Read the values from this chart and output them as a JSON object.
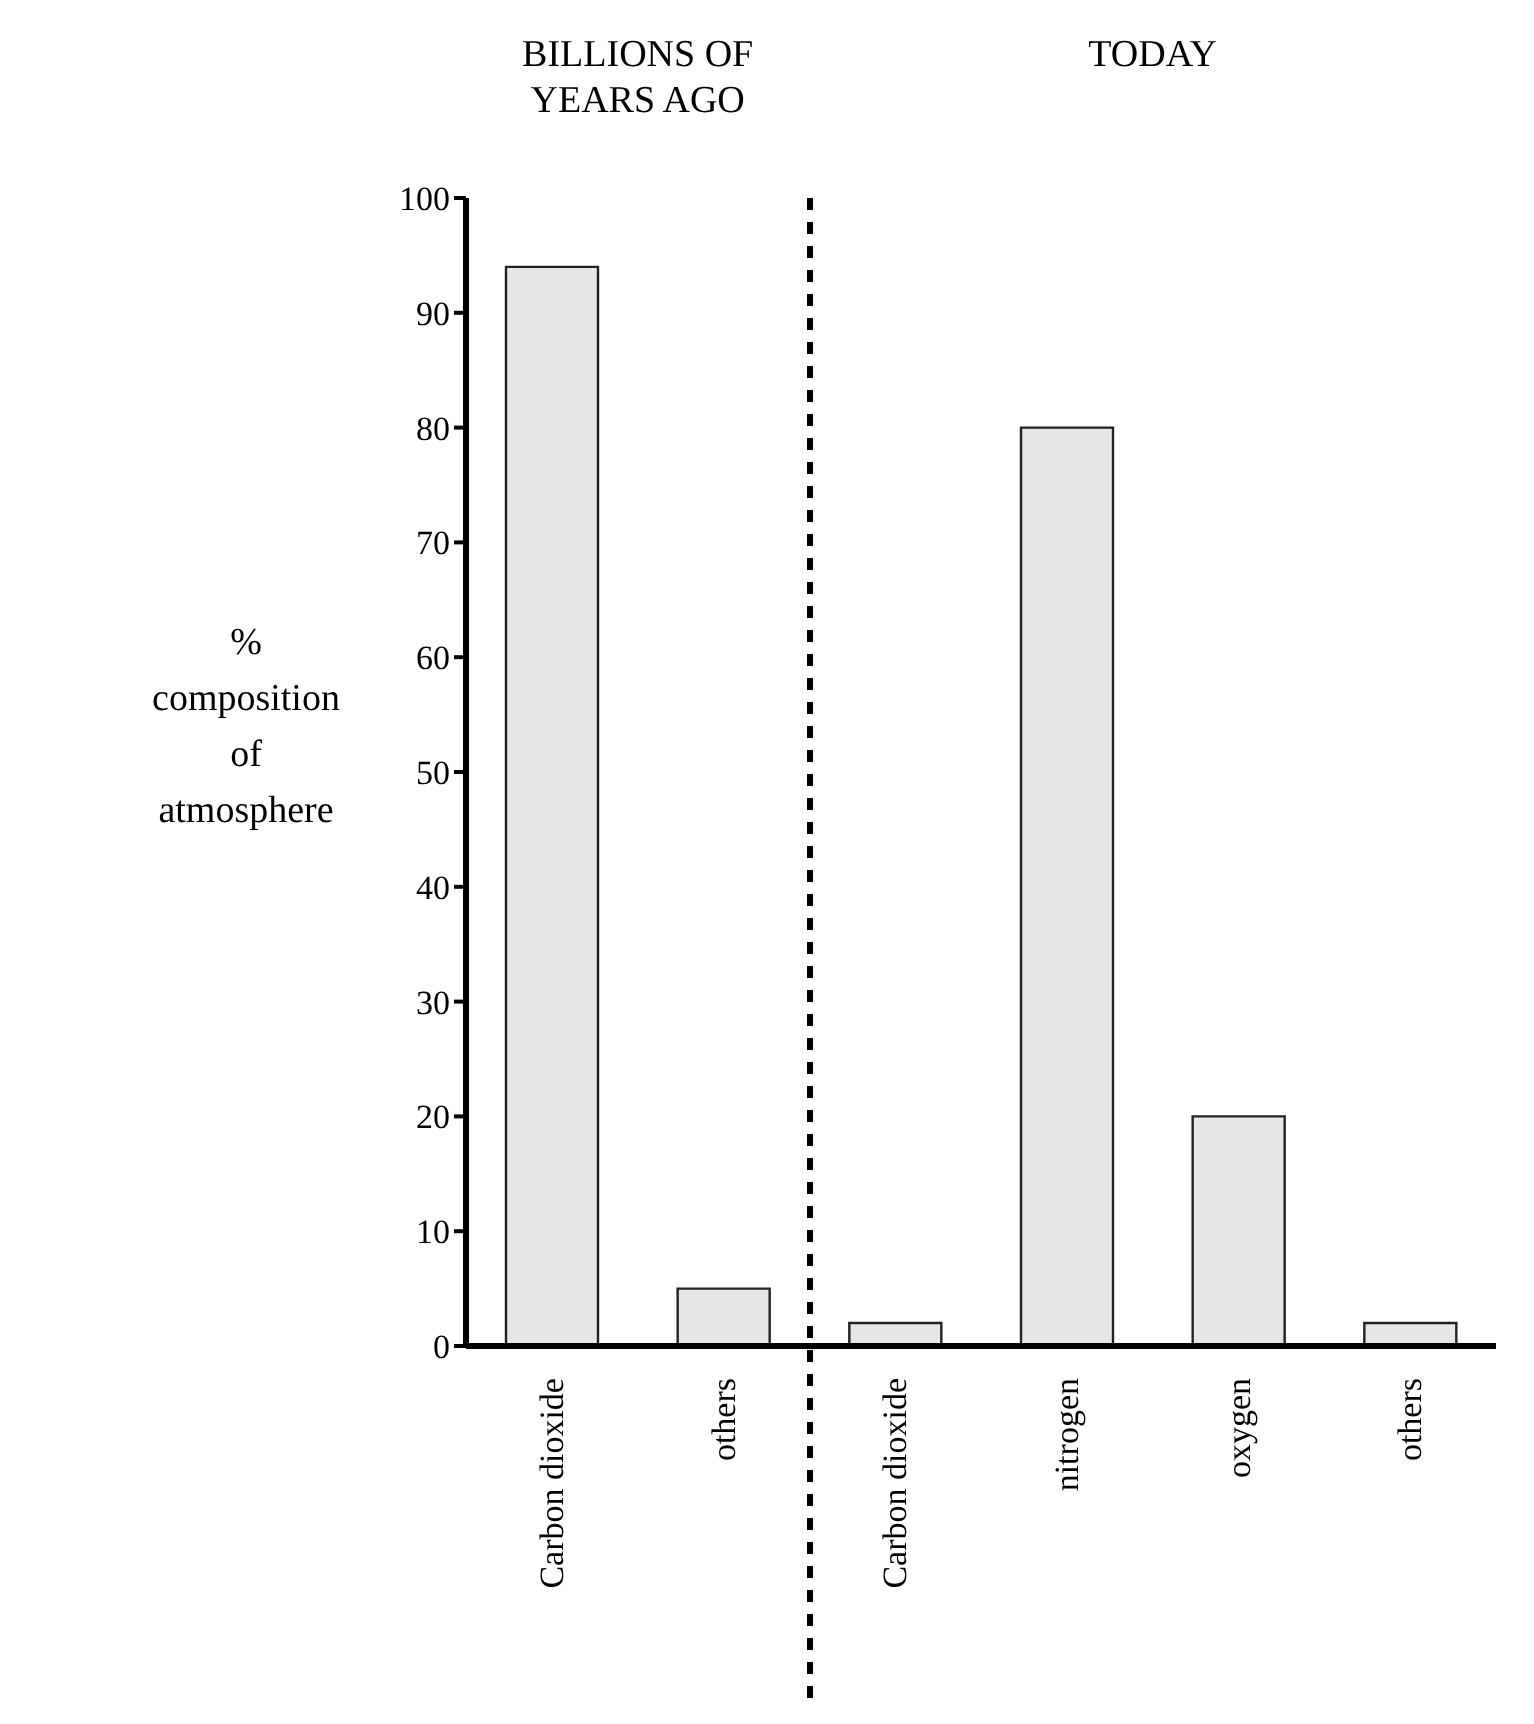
{
  "chart_data": {
    "type": "bar",
    "ylabel": "% composition of atmosphere",
    "categories": [
      "Carbon dioxide",
      "others",
      "Carbon dioxide",
      "nitrogen",
      "oxygen",
      "others"
    ],
    "values": [
      94,
      5,
      2,
      80,
      20,
      2
    ],
    "color": "#e6e6e6",
    "ylim": [
      0,
      100
    ],
    "yticks": [
      0,
      10,
      20,
      30,
      40,
      50,
      60,
      70,
      80,
      90,
      100
    ],
    "grid": false,
    "annotations": [
      "BILLIONS OF YEARS AGO",
      "TODAY"
    ]
  }
}
